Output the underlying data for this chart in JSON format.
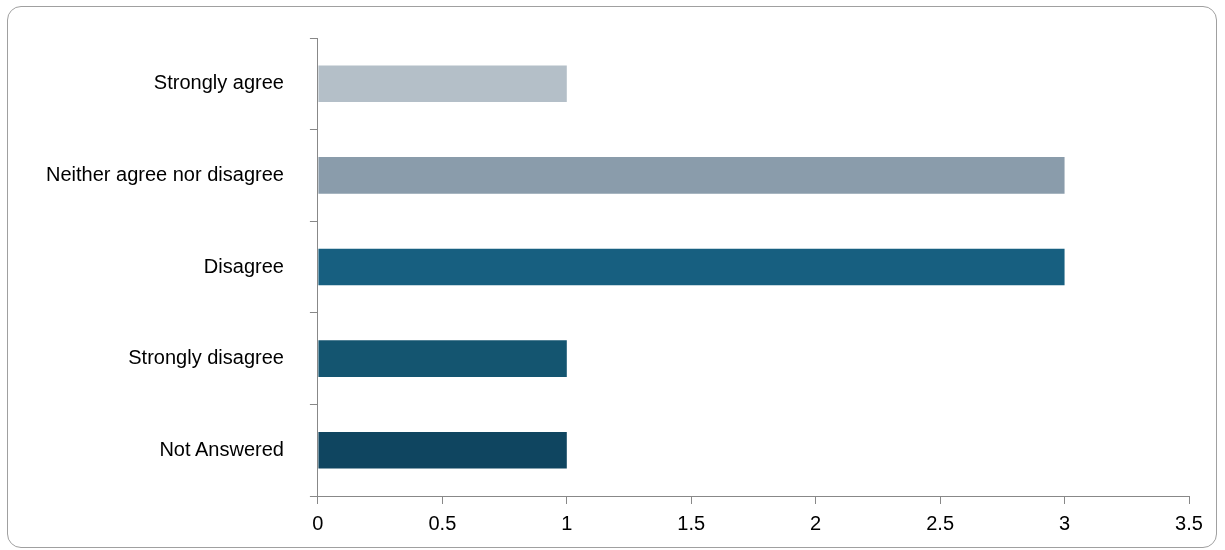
{
  "chart_data": {
    "type": "bar",
    "orientation": "horizontal",
    "categories": [
      "Strongly agree",
      "Neither agree nor disagree",
      "Disagree",
      "Strongly disagree",
      "Not Answered"
    ],
    "values": [
      1,
      3,
      3,
      1,
      1
    ],
    "colors": [
      "#b4bfc8",
      "#8a9cab",
      "#175f80",
      "#145570",
      "#0f4560"
    ],
    "xlim": [
      0,
      3.5
    ],
    "xticks": [
      0,
      0.5,
      1,
      1.5,
      2,
      2.5,
      3,
      3.5
    ],
    "grid": false,
    "legend": false
  }
}
